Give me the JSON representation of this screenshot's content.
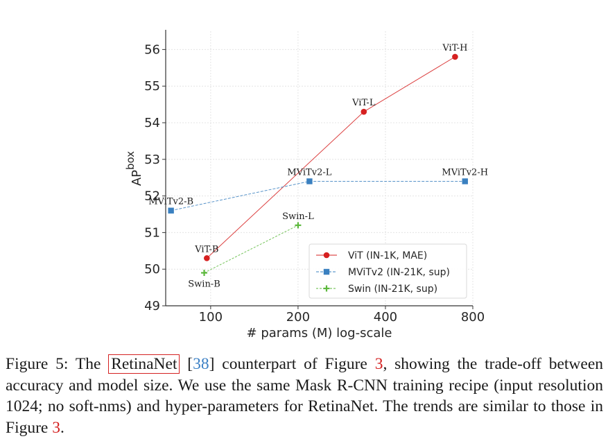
{
  "chart_data": {
    "type": "line",
    "xlabel": "# params (M) log-scale",
    "ylabel_base": "AP",
    "ylabel_sup": "box",
    "xscale": "log",
    "xlim": [
      70,
      800
    ],
    "ylim": [
      49,
      56.5
    ],
    "x_ticks": [
      100,
      200,
      400,
      800
    ],
    "x_tick_labels": [
      "100",
      "200",
      "400",
      "800"
    ],
    "y_ticks": [
      49,
      50,
      51,
      52,
      53,
      54,
      55,
      56
    ],
    "y_tick_labels": [
      "49",
      "50",
      "51",
      "52",
      "53",
      "54",
      "55",
      "56"
    ],
    "grid": true,
    "legend_position": "lower-right",
    "series": [
      {
        "name": "ViT (IN-1K, MAE)",
        "color": "#d62020",
        "marker": "circle",
        "points": [
          {
            "x": 97,
            "y": 50.3,
            "label": "ViT-B",
            "label_pos": "above"
          },
          {
            "x": 337,
            "y": 54.3,
            "label": "ViT-L",
            "label_pos": "above"
          },
          {
            "x": 695,
            "y": 55.8,
            "label": "ViT-H",
            "label_pos": "above"
          }
        ]
      },
      {
        "name": "MViTv2 (IN-21K, sup)",
        "color": "#3a80c0",
        "marker": "square",
        "points": [
          {
            "x": 73,
            "y": 51.6,
            "label": "MViTv2-B",
            "label_pos": "above"
          },
          {
            "x": 219,
            "y": 52.4,
            "label": "MViTv2-L",
            "label_pos": "above"
          },
          {
            "x": 752,
            "y": 52.4,
            "label": "MViTv2-H",
            "label_pos": "above"
          }
        ]
      },
      {
        "name": "Swin (IN-21K, sup)",
        "color": "#5cb83c",
        "marker": "plus",
        "points": [
          {
            "x": 95,
            "y": 49.9,
            "label": "Swin-B",
            "label_pos": "below"
          },
          {
            "x": 200,
            "y": 51.2,
            "label": "Swin-L",
            "label_pos": "above"
          }
        ]
      }
    ]
  },
  "caption": {
    "prefix": "Figure 5: The ",
    "boxed_term": "RetinaNet",
    "citation_open": " [",
    "citation": "38",
    "text1": "] counterpart of Figure ",
    "figref1": "3",
    "text2": ", showing the trade-off be­tween accuracy and model size. We use the same Mask R-CNN training recipe (input resolution 1024; no soft-nms) and hyper-parameters for RetinaNet. The trends are similar to those in Figure ",
    "figref2": "3",
    "suffix": "."
  }
}
